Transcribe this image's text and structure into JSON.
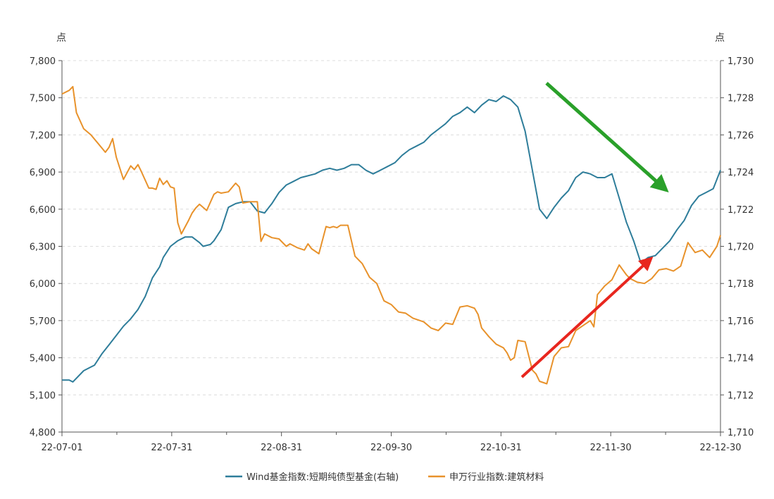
{
  "chart_data": {
    "type": "line",
    "title": "",
    "left_axis": {
      "unit": "点",
      "ylim": [
        4800,
        7800
      ],
      "ticks": [
        "4,800",
        "5,100",
        "5,400",
        "5,700",
        "6,000",
        "6,300",
        "6,600",
        "6,900",
        "7,200",
        "7,500",
        "7,800"
      ]
    },
    "right_axis": {
      "unit": "点",
      "ylim": [
        1710,
        1730
      ],
      "ticks": [
        "1,710",
        "1,712",
        "1,714",
        "1,716",
        "1,718",
        "1,720",
        "1,722",
        "1,724",
        "1,726",
        "1,728",
        "1,730"
      ]
    },
    "x_ticks": [
      "22-07-01",
      "22-07-31",
      "22-08-31",
      "22-09-30",
      "22-10-31",
      "22-11-30",
      "22-12-30"
    ],
    "grid": "horizontal dashed",
    "legend_position": "bottom-center",
    "series": [
      {
        "name": "Wind基金指数:短期纯债型基金(右轴)",
        "axis": "right",
        "color": "#2e7d9a",
        "x": [
          "2022-07-01",
          "2022-07-03",
          "2022-07-04",
          "2022-07-07",
          "2022-07-10",
          "2022-07-12",
          "2022-07-14",
          "2022-07-16",
          "2022-07-18",
          "2022-07-20",
          "2022-07-22",
          "2022-07-24",
          "2022-07-26",
          "2022-07-28",
          "2022-07-29",
          "2022-07-31",
          "2022-08-02",
          "2022-08-04",
          "2022-08-06",
          "2022-08-08",
          "2022-08-09",
          "2022-08-11",
          "2022-08-12",
          "2022-08-14",
          "2022-08-16",
          "2022-08-18",
          "2022-08-20",
          "2022-08-22",
          "2022-08-24",
          "2022-08-26",
          "2022-08-28",
          "2022-08-30",
          "2022-09-01",
          "2022-09-03",
          "2022-09-05",
          "2022-09-07",
          "2022-09-09",
          "2022-09-11",
          "2022-09-13",
          "2022-09-15",
          "2022-09-17",
          "2022-09-19",
          "2022-09-21",
          "2022-09-23",
          "2022-09-25",
          "2022-09-27",
          "2022-09-29",
          "2022-10-01",
          "2022-10-03",
          "2022-10-05",
          "2022-10-07",
          "2022-10-09",
          "2022-10-11",
          "2022-10-13",
          "2022-10-15",
          "2022-10-17",
          "2022-10-19",
          "2022-10-21",
          "2022-10-23",
          "2022-10-25",
          "2022-10-27",
          "2022-10-29",
          "2022-10-31",
          "2022-11-02",
          "2022-11-04",
          "2022-11-06",
          "2022-11-08",
          "2022-11-10",
          "2022-11-12",
          "2022-11-14",
          "2022-11-16",
          "2022-11-18",
          "2022-11-20",
          "2022-11-22",
          "2022-11-24",
          "2022-11-26",
          "2022-11-28",
          "2022-11-30",
          "2022-12-02",
          "2022-12-04",
          "2022-12-06",
          "2022-12-08",
          "2022-12-10",
          "2022-12-12",
          "2022-12-14",
          "2022-12-16",
          "2022-12-18",
          "2022-12-20",
          "2022-12-22",
          "2022-12-24",
          "2022-12-26",
          "2022-12-28",
          "2022-12-30"
        ],
        "values": [
          1712.8,
          1712.8,
          1712.7,
          1713.3,
          1713.6,
          1714.2,
          1714.7,
          1715.2,
          1715.7,
          1716.1,
          1716.6,
          1717.3,
          1718.3,
          1718.9,
          1719.4,
          1720.0,
          1720.3,
          1720.5,
          1720.5,
          1720.2,
          1720.0,
          1720.1,
          1720.3,
          1720.9,
          1722.1,
          1722.3,
          1722.4,
          1722.4,
          1721.9,
          1721.8,
          1722.3,
          1722.9,
          1723.3,
          1723.5,
          1723.7,
          1723.8,
          1723.9,
          1724.1,
          1724.2,
          1724.1,
          1724.2,
          1724.4,
          1724.4,
          1724.1,
          1723.9,
          1724.1,
          1724.3,
          1724.5,
          1724.9,
          1725.2,
          1725.4,
          1725.6,
          1726.0,
          1726.3,
          1726.6,
          1727.0,
          1727.2,
          1727.5,
          1727.2,
          1727.6,
          1727.9,
          1727.8,
          1728.1,
          1727.9,
          1727.5,
          1726.2,
          1724.1,
          1722.0,
          1721.5,
          1722.1,
          1722.6,
          1723.0,
          1723.7,
          1724.0,
          1723.9,
          1723.7,
          1723.7,
          1723.9,
          1722.6,
          1721.3,
          1720.3,
          1719.1,
          1719.4,
          1719.5,
          1719.9,
          1720.3,
          1720.9,
          1721.4,
          1722.2,
          1722.7,
          1722.9,
          1723.1,
          1724.1
        ]
      },
      {
        "name": "申万行业指数:建筑材料",
        "axis": "left",
        "color": "#e8922b",
        "x": [
          "2022-07-01",
          "2022-07-03",
          "2022-07-04",
          "2022-07-05",
          "2022-07-07",
          "2022-07-09",
          "2022-07-11",
          "2022-07-13",
          "2022-07-14",
          "2022-07-15",
          "2022-07-16",
          "2022-07-18",
          "2022-07-20",
          "2022-07-21",
          "2022-07-22",
          "2022-07-23",
          "2022-07-25",
          "2022-07-26",
          "2022-07-27",
          "2022-07-28",
          "2022-07-29",
          "2022-07-30",
          "2022-07-31",
          "2022-08-01",
          "2022-08-02",
          "2022-08-03",
          "2022-08-05",
          "2022-08-06",
          "2022-08-07",
          "2022-08-08",
          "2022-08-10",
          "2022-08-12",
          "2022-08-13",
          "2022-08-14",
          "2022-08-16",
          "2022-08-18",
          "2022-08-19",
          "2022-08-20",
          "2022-08-22",
          "2022-08-24",
          "2022-08-25",
          "2022-08-26",
          "2022-08-28",
          "2022-08-30",
          "2022-09-01",
          "2022-09-02",
          "2022-09-04",
          "2022-09-06",
          "2022-09-07",
          "2022-09-08",
          "2022-09-10",
          "2022-09-12",
          "2022-09-13",
          "2022-09-14",
          "2022-09-15",
          "2022-09-16",
          "2022-09-18",
          "2022-09-20",
          "2022-09-22",
          "2022-09-24",
          "2022-09-26",
          "2022-09-28",
          "2022-09-30",
          "2022-10-02",
          "2022-10-04",
          "2022-10-06",
          "2022-10-08",
          "2022-10-09",
          "2022-10-11",
          "2022-10-13",
          "2022-10-15",
          "2022-10-17",
          "2022-10-19",
          "2022-10-21",
          "2022-10-23",
          "2022-10-24",
          "2022-10-25",
          "2022-10-27",
          "2022-10-29",
          "2022-10-31",
          "2022-11-01",
          "2022-11-02",
          "2022-11-03",
          "2022-11-04",
          "2022-11-06",
          "2022-11-08",
          "2022-11-09",
          "2022-11-10",
          "2022-11-12",
          "2022-11-14",
          "2022-11-16",
          "2022-11-18",
          "2022-11-20",
          "2022-11-22",
          "2022-11-24",
          "2022-11-25",
          "2022-11-26",
          "2022-11-28",
          "2022-11-30",
          "2022-12-02",
          "2022-12-04",
          "2022-12-05",
          "2022-12-07",
          "2022-12-09",
          "2022-12-11",
          "2022-12-13",
          "2022-12-15",
          "2022-12-17",
          "2022-12-19",
          "2022-12-21",
          "2022-12-23",
          "2022-12-25",
          "2022-12-27",
          "2022-12-29",
          "2022-12-30"
        ],
        "values": [
          7530,
          7560,
          7590,
          7380,
          7250,
          7200,
          7130,
          7060,
          7100,
          7170,
          7020,
          6840,
          6950,
          6920,
          6960,
          6900,
          6770,
          6770,
          6760,
          6850,
          6800,
          6830,
          6780,
          6770,
          6490,
          6400,
          6510,
          6570,
          6610,
          6640,
          6590,
          6720,
          6740,
          6730,
          6740,
          6810,
          6780,
          6650,
          6660,
          6660,
          6340,
          6400,
          6370,
          6360,
          6300,
          6320,
          6290,
          6270,
          6320,
          6280,
          6240,
          6460,
          6450,
          6460,
          6450,
          6470,
          6470,
          6220,
          6160,
          6050,
          6000,
          5860,
          5830,
          5770,
          5760,
          5720,
          5700,
          5690,
          5640,
          5620,
          5680,
          5670,
          5810,
          5820,
          5800,
          5750,
          5640,
          5570,
          5510,
          5480,
          5440,
          5380,
          5400,
          5540,
          5530,
          5300,
          5270,
          5210,
          5190,
          5410,
          5480,
          5490,
          5620,
          5660,
          5700,
          5650,
          5910,
          5980,
          6030,
          6150,
          6070,
          6040,
          6010,
          6000,
          6040,
          6110,
          6120,
          6100,
          6140,
          6330,
          6250,
          6270,
          6210,
          6300,
          6390
        ]
      }
    ],
    "annotations": [
      {
        "type": "arrow",
        "color": "#2aa02a",
        "direction": "down-right"
      },
      {
        "type": "arrow",
        "color": "#e8261e",
        "direction": "up-right"
      }
    ]
  }
}
